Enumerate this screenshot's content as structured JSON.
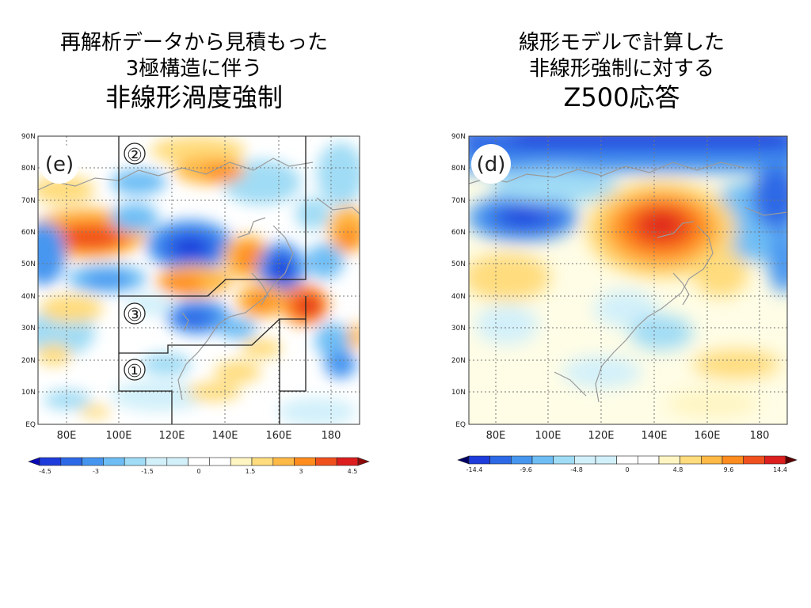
{
  "left_panel": {
    "title_line1": "再解析データから見積もった",
    "title_line2": "3極構造に伴う",
    "title_line3": "非線形渦度強制",
    "panel_label": "(e)",
    "region_labels": [
      "②",
      "③",
      "①"
    ],
    "colorbar_labels": [
      "-4.5",
      "-3",
      "-1.5",
      "0",
      "1.5",
      "3",
      "4.5"
    ]
  },
  "right_panel": {
    "title_line1": "線形モデルで計算した",
    "title_line2": "非線形強制に対する",
    "title_line3": "Z500応答",
    "panel_label": "(d)",
    "colorbar_labels": [
      "-14.4",
      "-9.6",
      "-4.8",
      "0",
      "4.8",
      "9.6",
      "14.4"
    ]
  },
  "axes": {
    "lat_labels": [
      "90N",
      "80N",
      "70N",
      "60N",
      "50N",
      "40N",
      "30N",
      "20N",
      "10N",
      "EQ"
    ],
    "lon_labels": [
      "80E",
      "100E",
      "120E",
      "140E",
      "160E",
      "180"
    ]
  },
  "colors": {
    "neg_scale": [
      "#0a0ab4",
      "#1e3cdc",
      "#2d69e6",
      "#4696f0",
      "#6ebef5",
      "#a0dcf5",
      "#d2f0fa"
    ],
    "pos_scale": [
      "#fff5c3",
      "#ffdc7d",
      "#ffb946",
      "#ff8c1e",
      "#f0501e",
      "#dc1e1e",
      "#8c0a0a"
    ],
    "neutral": "#ffffff"
  }
}
